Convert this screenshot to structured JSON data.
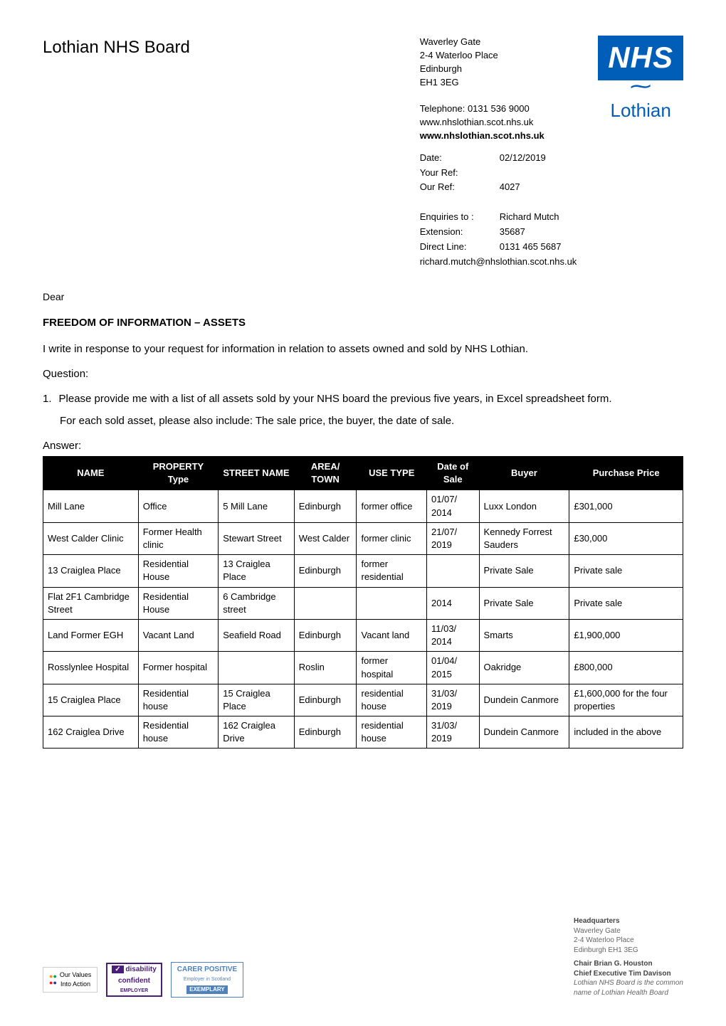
{
  "org_name": "Lothian NHS Board",
  "address": {
    "line1": "Waverley Gate",
    "line2": "2-4 Waterloo Place",
    "line3": "Edinburgh",
    "line4": "EH1 3EG",
    "phone_label": "Telephone: 0131 536 9000",
    "url1": "www.nhslothian.scot.nhs.uk",
    "url2": "www.nhslothian.scot.nhs.uk"
  },
  "logo": {
    "nhs": "NHS",
    "lothian": "Lothian"
  },
  "meta": {
    "date_label": "Date:",
    "date_value": "02/12/2019",
    "your_ref_label": "Your Ref:",
    "your_ref_value": "",
    "our_ref_label": "Our Ref:",
    "our_ref_value": "4027",
    "enquiries_label": "Enquiries to :",
    "enquiries_value": "Richard Mutch",
    "extension_label": "Extension:",
    "extension_value": "35687",
    "direct_line_label": "Direct Line:",
    "direct_line_value": "0131 465 5687",
    "email": "richard.mutch@nhslothian.scot.nhs.uk"
  },
  "salutation": "Dear",
  "subject": "FREEDOM OF INFORMATION – ASSETS",
  "intro": "I write in response to your request for information in relation to assets owned and sold by NHS Lothian.",
  "question_label": "Question:",
  "question_num": "1.",
  "question_text": "Please provide me with a list of all assets sold by your NHS board the previous five years, in Excel spreadsheet form.",
  "question_sub": "For each sold asset, please also include: The sale price, the buyer, the date of sale.",
  "answer_label": "Answer:",
  "table": {
    "columns": [
      "NAME",
      "PROPERTY Type",
      "STREET NAME",
      "AREA/ TOWN",
      "USE TYPE",
      "Date of Sale",
      "Buyer",
      "Purchase Price"
    ],
    "header_bg": "#000000",
    "header_fg": "#ffffff",
    "border_color": "#000000",
    "rows": [
      [
        "Mill Lane",
        "Office",
        "5 Mill Lane",
        "Edinburgh",
        "former office",
        "01/07/ 2014",
        "Luxx London",
        "£301,000"
      ],
      [
        "West Calder Clinic",
        "Former Health clinic",
        "Stewart Street",
        "West Calder",
        "former clinic",
        "21/07/ 2019",
        "Kennedy Forrest Sauders",
        "£30,000"
      ],
      [
        "13 Craiglea Place",
        "Residential House",
        "13 Craiglea Place",
        "Edinburgh",
        "former residential",
        "",
        "Private Sale",
        "Private sale"
      ],
      [
        "Flat 2F1 Cambridge Street",
        "Residential House",
        "6 Cambridge street",
        "",
        "",
        "2014",
        "Private Sale",
        "Private sale"
      ],
      [
        "Land Former EGH",
        "Vacant Land",
        "Seafield Road",
        "Edinburgh",
        "Vacant land",
        "11/03/ 2014",
        "Smarts",
        "£1,900,000"
      ],
      [
        "Rosslynlee Hospital",
        "Former hospital",
        "",
        "Roslin",
        "former hospital",
        "01/04/ 2015",
        "Oakridge",
        "£800,000"
      ],
      [
        "15 Craiglea Place",
        "Residential house",
        "15 Craiglea Place",
        "Edinburgh",
        "residential house",
        "31/03/ 2019",
        "Dundein Canmore",
        "£1,600,000 for the four properties"
      ],
      [
        "162 Craiglea Drive",
        "Residential house",
        "162 Craiglea Drive",
        "Edinburgh",
        "residential house",
        "31/03/ 2019",
        "Dundein Canmore",
        "included in the above"
      ]
    ]
  },
  "footer_badges": {
    "values1": "Our Values",
    "values2": "Into Action",
    "disability1": "disability",
    "disability2": "confident",
    "disability3": "EMPLOYER",
    "carer1": "CARER POSITIVE",
    "carer2": "Employer in Scotland",
    "carer3": "EXEMPLARY"
  },
  "footer_address": {
    "hq": "Headquarters",
    "l1": "Waverley Gate",
    "l2": "2-4 Waterloo Place",
    "l3": "Edinburgh EH1 3EG",
    "chair": "Chair Brian G. Houston",
    "ceo": "Chief Executive Tim Davison",
    "i1": "Lothian NHS Board is the common",
    "i2": "name of Lothian Health Board"
  }
}
